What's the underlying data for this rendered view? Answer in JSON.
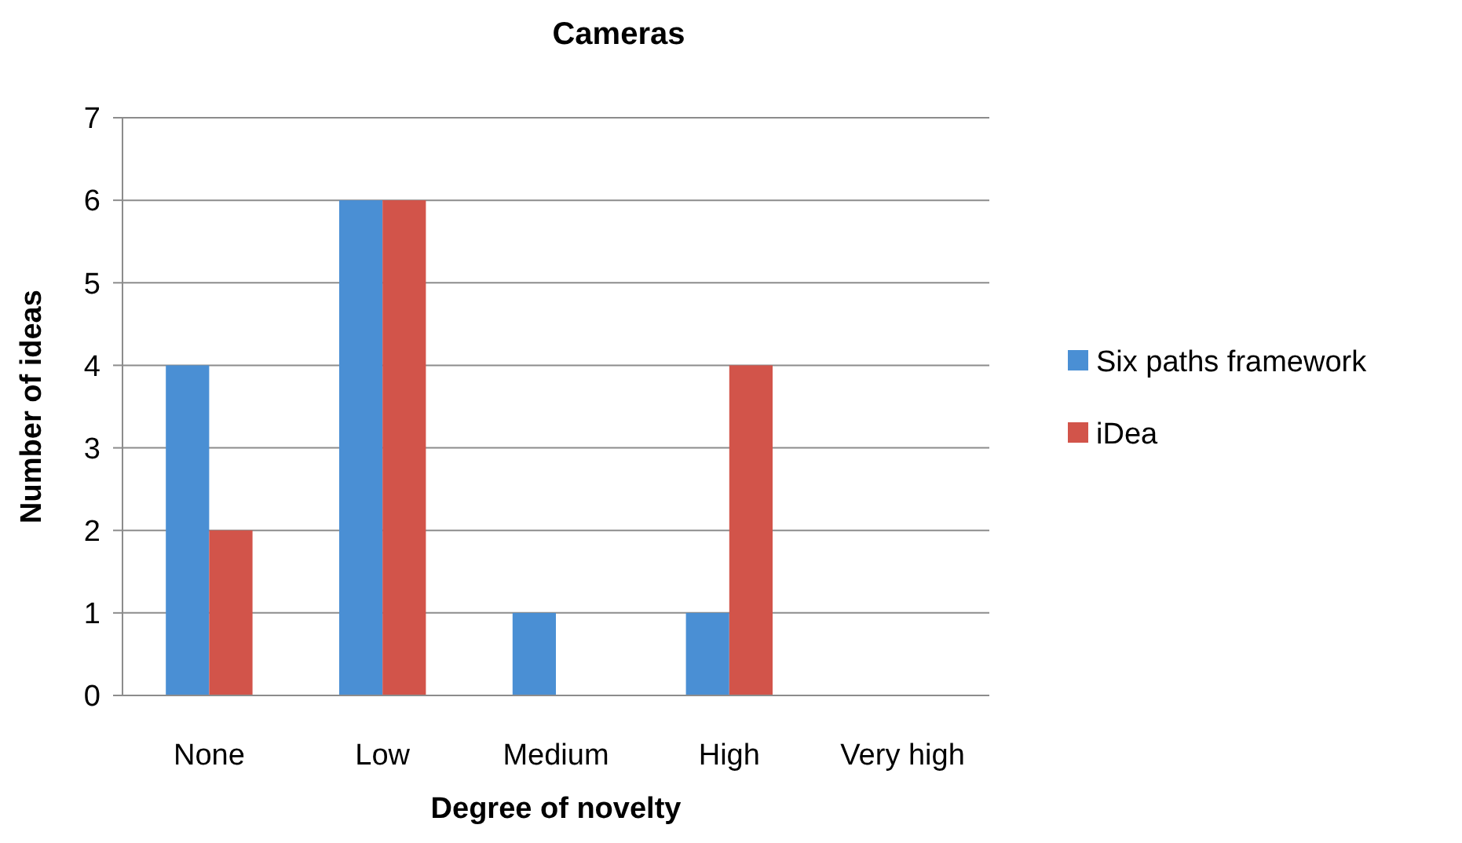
{
  "chart_data": {
    "type": "bar",
    "title": "Cameras",
    "xlabel": "Degree of novelty",
    "ylabel": "Number of ideas",
    "categories": [
      "None",
      "Low",
      "Medium",
      "High",
      "Very high"
    ],
    "series": [
      {
        "name": "Six paths framework",
        "color": "#4a8fd4",
        "values": [
          4,
          6,
          1,
          1,
          0
        ]
      },
      {
        "name": "iDea",
        "color": "#d2544a",
        "values": [
          2,
          6,
          0,
          4,
          0
        ]
      }
    ],
    "ylim": [
      0,
      7
    ],
    "yticks": [
      0,
      1,
      2,
      3,
      4,
      5,
      6,
      7
    ],
    "grid": "y",
    "legend": "right"
  }
}
